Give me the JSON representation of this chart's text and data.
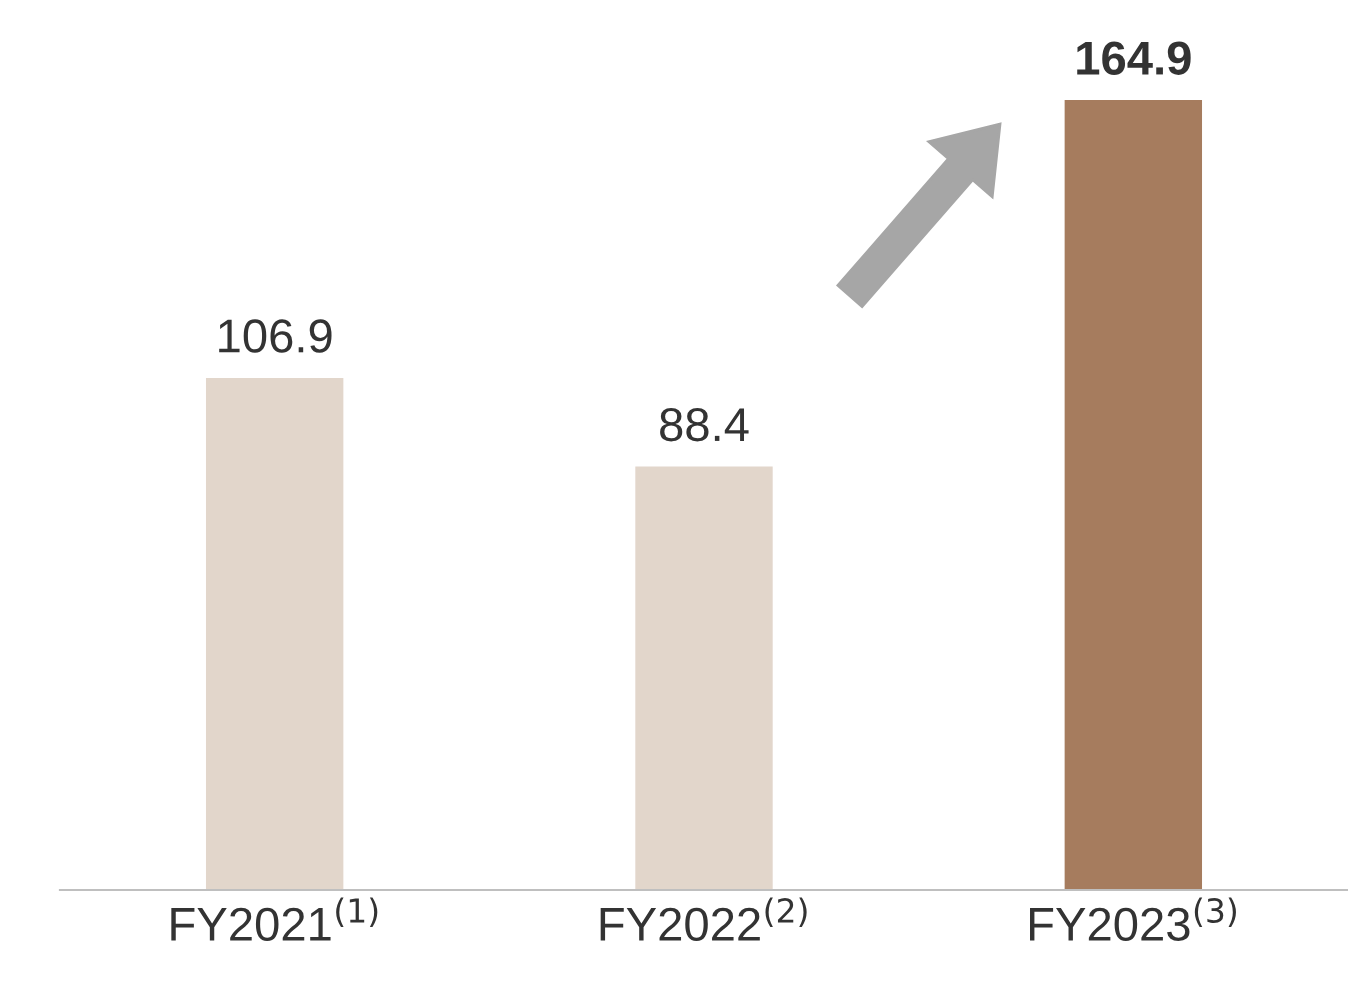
{
  "chart_data": {
    "type": "bar",
    "categories": [
      "FY2021$^{(1)}$",
      "FY2022$^{(2)}$",
      "FY2023$^{(3)}$"
    ],
    "values": [
      106.9,
      88.4,
      164.9
    ],
    "colors": [
      "#e2d6cb",
      "#e2d6cb",
      "#a67c5e"
    ],
    "data_labels": true,
    "grid": false,
    "legend": false
  }
}
